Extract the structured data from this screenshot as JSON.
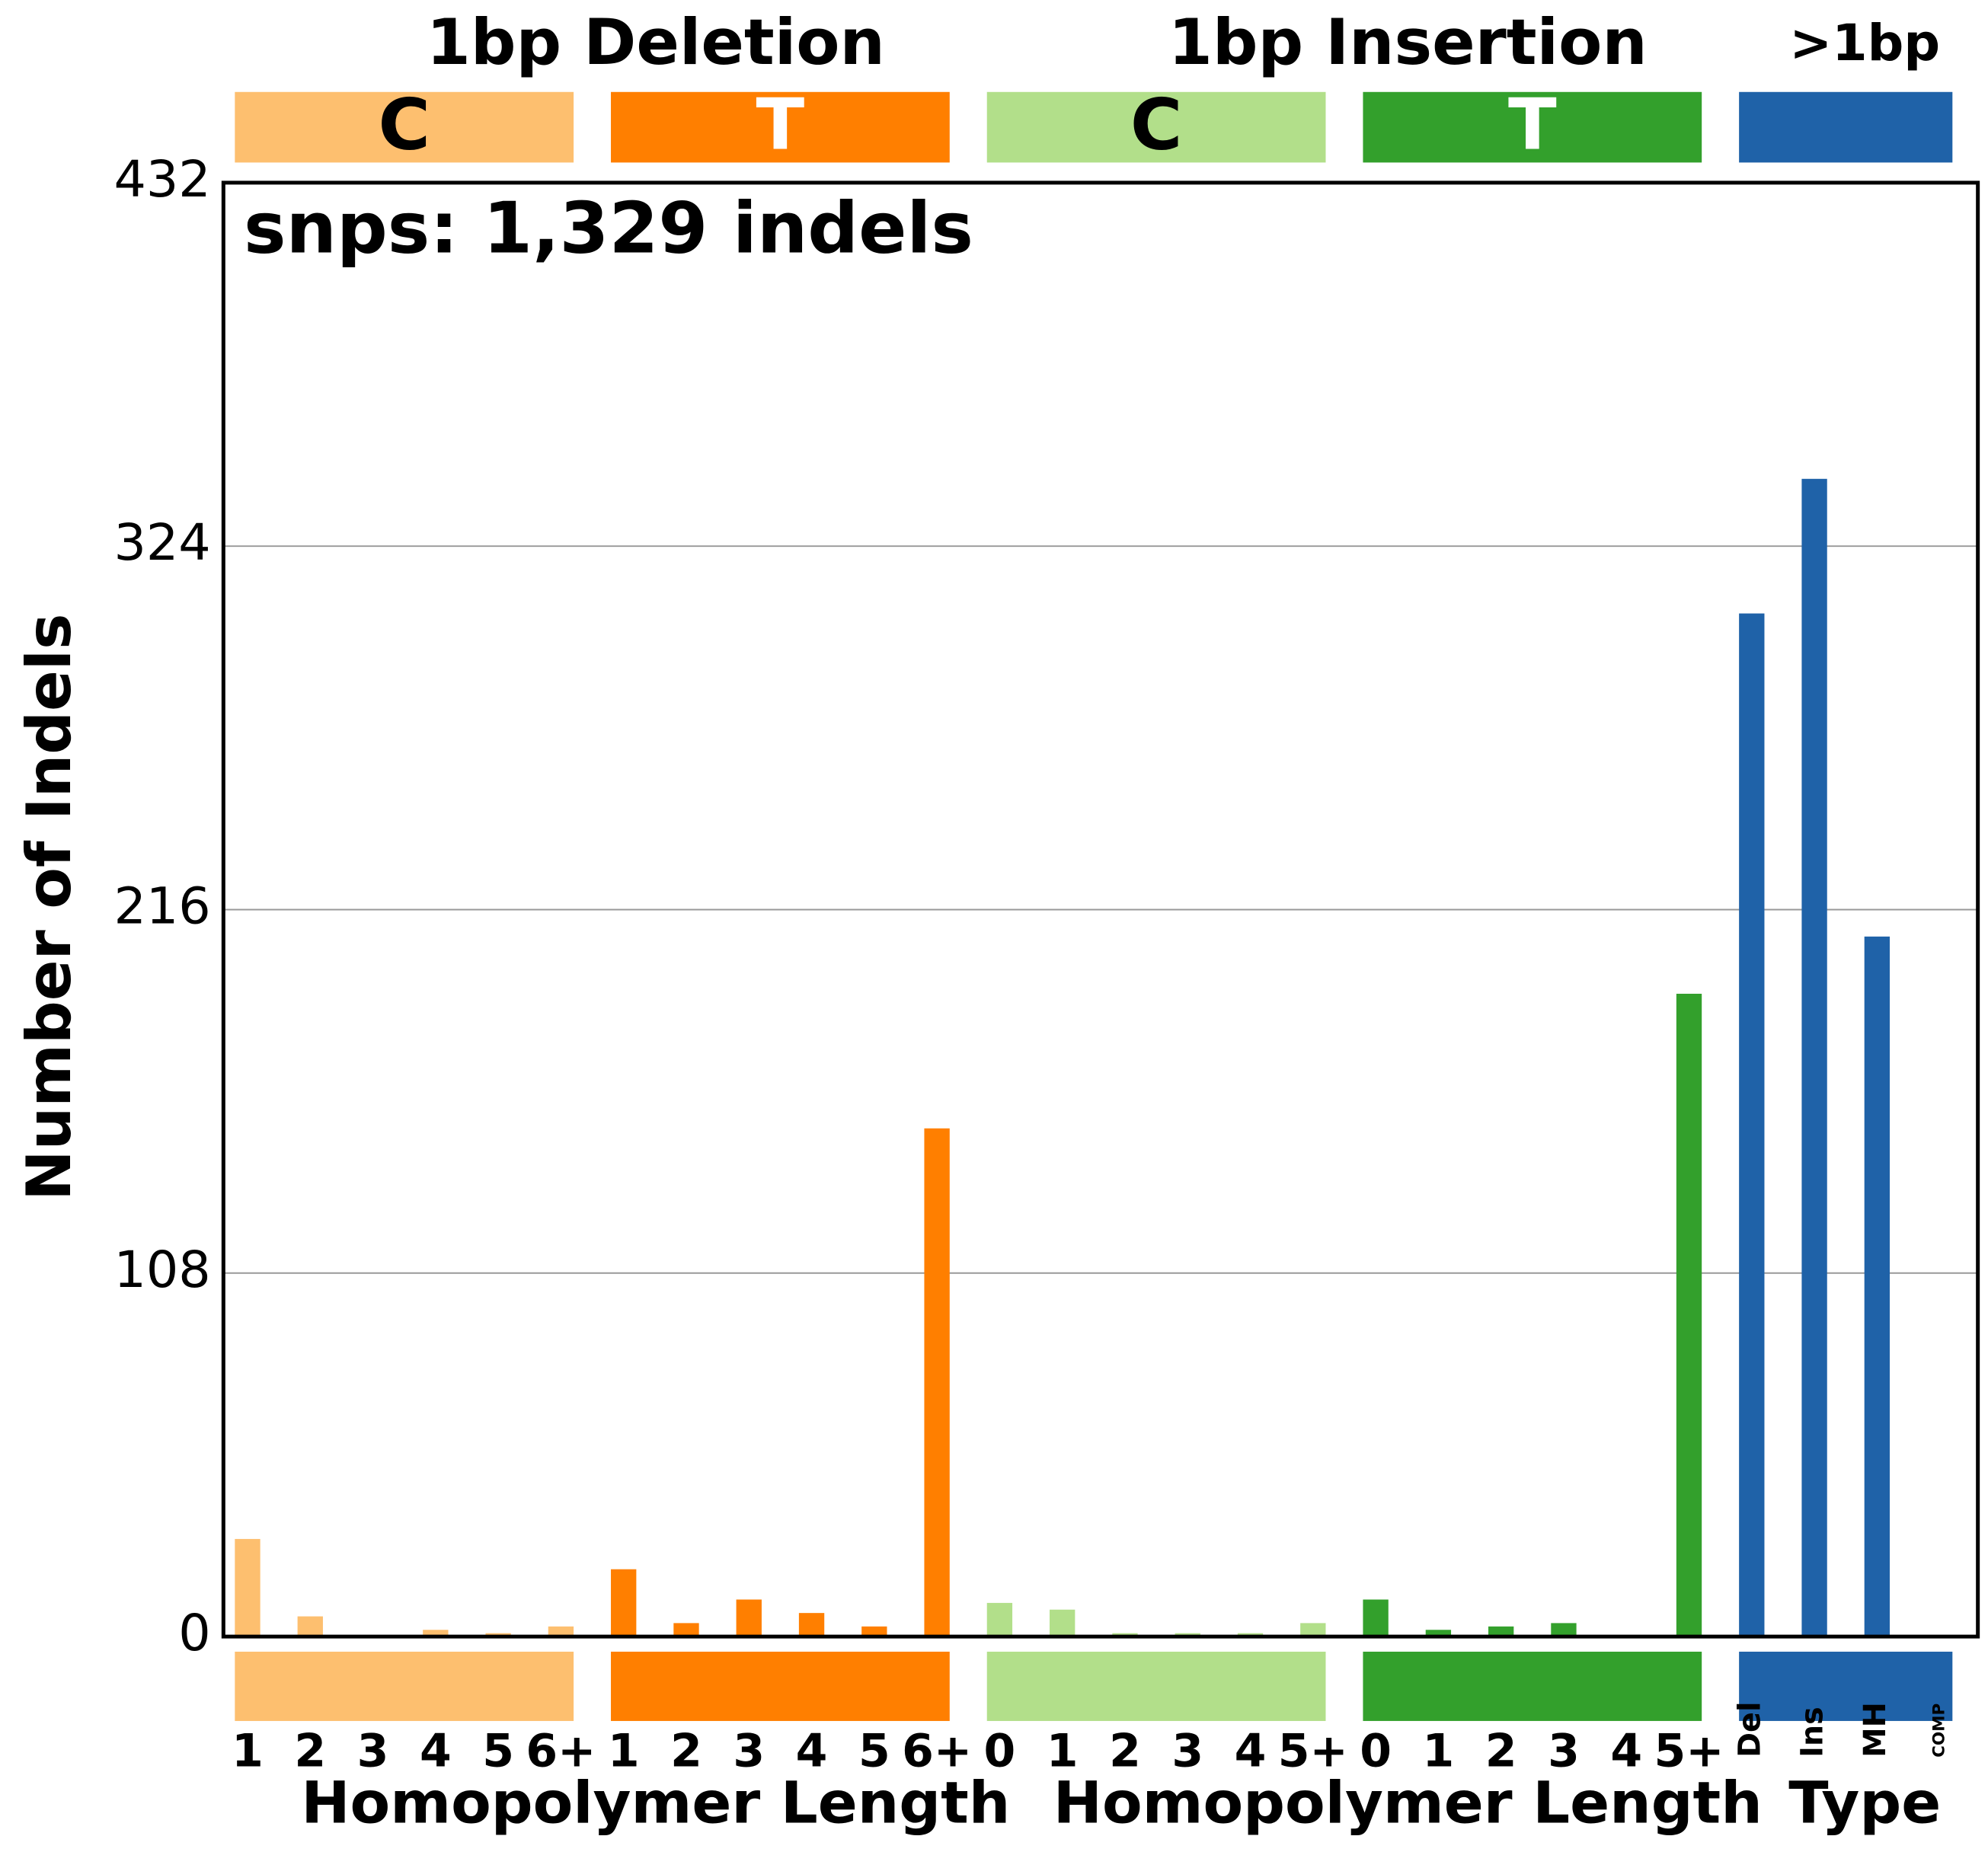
{
  "chart_data": {
    "type": "bar",
    "annotation": "snps: 1,329 indels",
    "ylabel": "Number of Indels",
    "ylim": [
      0,
      432
    ],
    "yticks": [
      0,
      108,
      216,
      324,
      432
    ],
    "grid": true,
    "panels": [
      {
        "title": "1bp Deletion",
        "xlabel": "Homopolymer Length",
        "series": [
          {
            "name": "C",
            "color": "#fdbf6f",
            "categories": [
              "1",
              "2",
              "3",
              "4",
              "5",
              "6+"
            ],
            "values": [
              29,
              6,
              0,
              2,
              1,
              3
            ]
          },
          {
            "name": "T",
            "color": "#ff7f00",
            "categories": [
              "1",
              "2",
              "3",
              "4",
              "5",
              "6+"
            ],
            "values": [
              20,
              4,
              11,
              7,
              3,
              151
            ]
          }
        ]
      },
      {
        "title": "1bp Insertion",
        "xlabel": "Homopolymer Length",
        "series": [
          {
            "name": "C",
            "color": "#b2df8a",
            "categories": [
              "0",
              "1",
              "2",
              "3",
              "4",
              "5+"
            ],
            "values": [
              10,
              8,
              1,
              1,
              1,
              4
            ]
          },
          {
            "name": "T",
            "color": "#33a02c",
            "categories": [
              "0",
              "1",
              "2",
              "3",
              "4",
              "5+"
            ],
            "values": [
              11,
              2,
              3,
              4,
              0,
              191
            ]
          }
        ]
      },
      {
        "title": ">1bp",
        "xlabel": "Type",
        "series": [
          {
            "color": "#1f62a8",
            "categories": [
              "Del",
              "Ins",
              "MH",
              "COMP"
            ],
            "values": [
              304,
              344,
              208,
              0
            ]
          }
        ]
      }
    ]
  }
}
